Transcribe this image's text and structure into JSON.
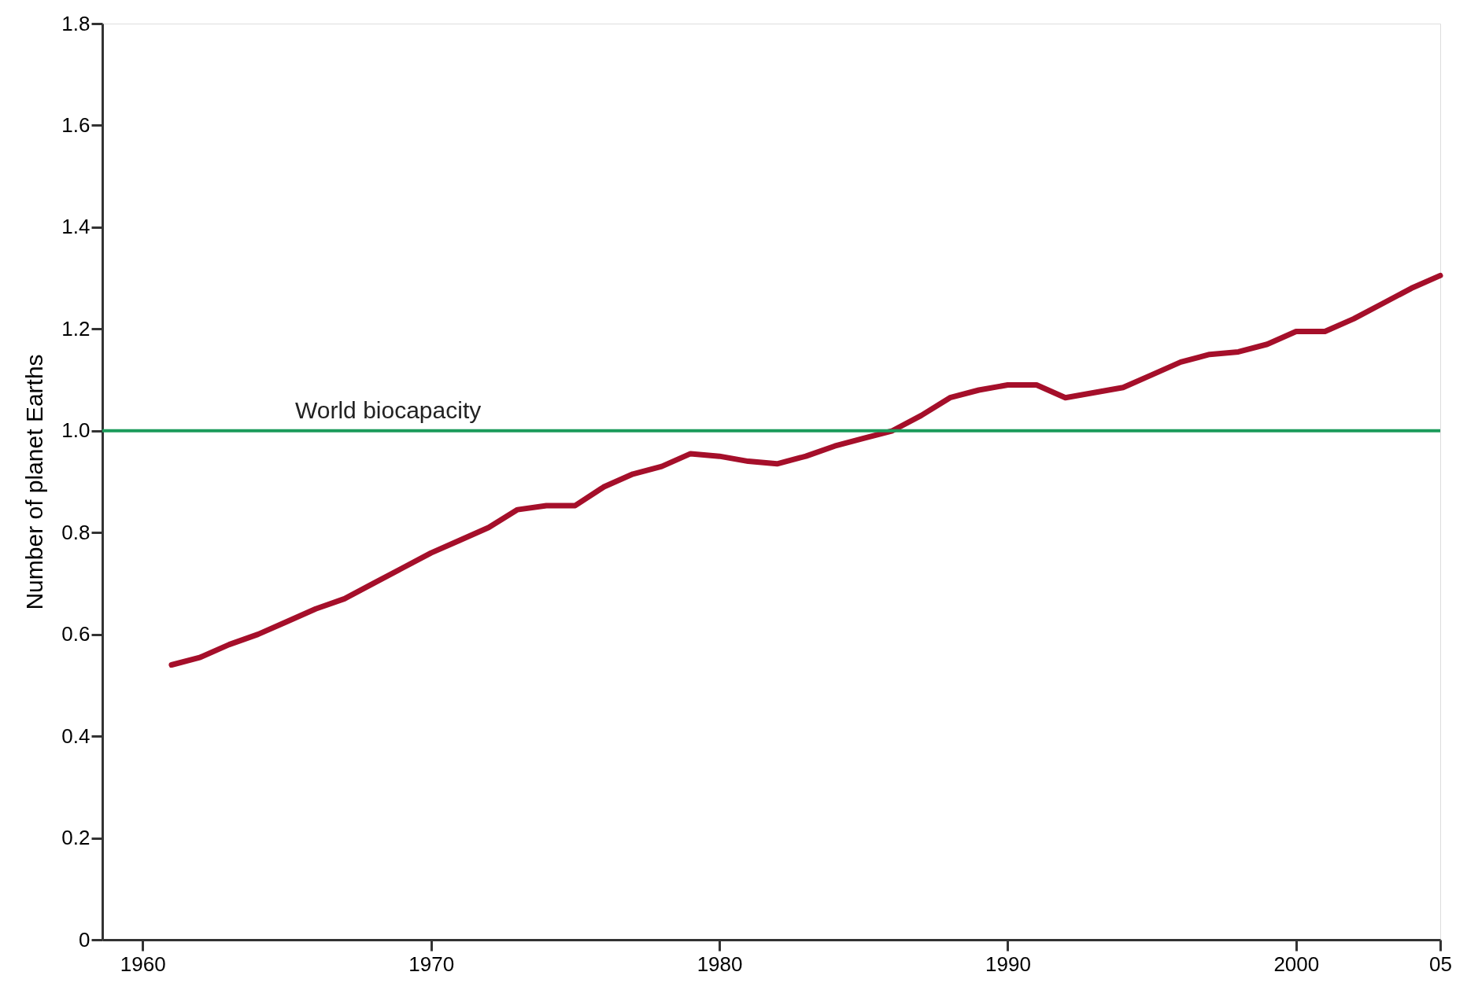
{
  "chart_data": {
    "type": "line",
    "ylabel": "Number of planet Earths",
    "x": [
      1961,
      1962,
      1963,
      1964,
      1965,
      1966,
      1967,
      1968,
      1969,
      1970,
      1971,
      1972,
      1973,
      1974,
      1975,
      1976,
      1977,
      1978,
      1979,
      1980,
      1981,
      1982,
      1983,
      1984,
      1985,
      1986,
      1987,
      1988,
      1989,
      1990,
      1991,
      1992,
      1993,
      1994,
      1995,
      1996,
      1997,
      1998,
      1999,
      2000,
      2001,
      2002,
      2003,
      2004,
      2005
    ],
    "series": [
      {
        "color": "#a50f2a",
        "values": [
          0.54,
          0.555,
          0.58,
          0.6,
          0.625,
          0.65,
          0.67,
          0.7,
          0.73,
          0.76,
          0.785,
          0.81,
          0.845,
          0.853,
          0.853,
          0.89,
          0.915,
          0.93,
          0.955,
          0.95,
          0.94,
          0.935,
          0.95,
          0.97,
          0.985,
          1.0,
          1.03,
          1.065,
          1.08,
          1.09,
          1.09,
          1.065,
          1.075,
          1.085,
          1.11,
          1.135,
          1.15,
          1.155,
          1.17,
          1.195,
          1.195,
          1.22,
          1.25,
          1.28,
          1.305
        ]
      }
    ],
    "xlim": [
      1958.6,
      2005
    ],
    "xticks": [
      1960,
      1970,
      1980,
      1990,
      2000,
      {
        "value": 2005,
        "label": "05"
      }
    ],
    "ylim": [
      0,
      1.8
    ],
    "yticks": [
      0,
      0.2,
      0.4,
      0.6,
      0.8,
      {
        "value": 1,
        "label": "1.0"
      },
      1.2,
      1.4,
      1.6,
      1.8
    ],
    "ref_lines": [
      {
        "axis": "y",
        "value": 1,
        "label": "World biocapacity",
        "color": "#1a9a5a"
      }
    ],
    "grid": false,
    "marker": "none",
    "line_style": "solid"
  }
}
